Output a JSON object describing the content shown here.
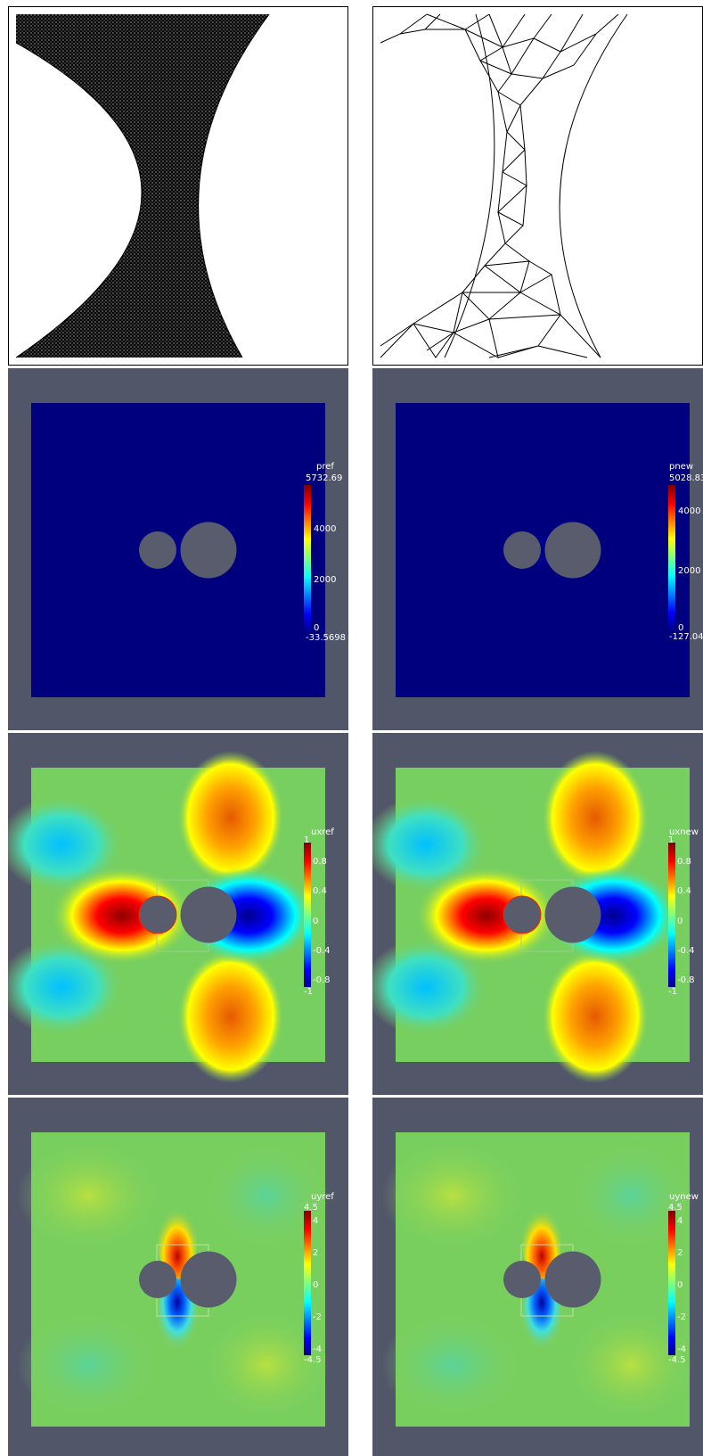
{
  "colors": {
    "viewport_bg": "#525669",
    "obstacle": "#595c6c",
    "mesh_line": "#000000"
  },
  "panels": {
    "pref": {
      "title": "pref",
      "max_label": "5732.69",
      "min_label": "-33.5698",
      "ticks": [
        "4000",
        "2000",
        "0"
      ]
    },
    "pnew": {
      "title": "pnew",
      "max_label": "5028.83",
      "min_label": "-127.04",
      "ticks": [
        "4000",
        "2000",
        "0"
      ]
    },
    "uxref": {
      "title": "uxref",
      "max_label": "1",
      "min_label": "-1",
      "ticks": [
        "0.8",
        "0.4",
        "0",
        "-0.4",
        "-0.8"
      ]
    },
    "uxnew": {
      "title": "uxnew",
      "max_label": "1",
      "min_label": "-1",
      "ticks": [
        "0.8",
        "0.4",
        "0",
        "-0.4",
        "-0.8"
      ]
    },
    "uyref": {
      "title": "uyref",
      "max_label": "4.5",
      "min_label": "-4.5",
      "ticks": [
        "4",
        "2",
        "0",
        "-2",
        "-4"
      ]
    },
    "uynew": {
      "title": "uynew",
      "max_label": "4.5",
      "min_label": "-4.5",
      "ticks": [
        "4",
        "2",
        "0",
        "-2",
        "-4"
      ]
    }
  }
}
